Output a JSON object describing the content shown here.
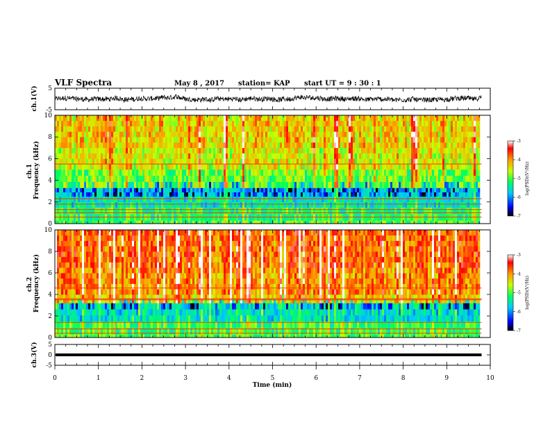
{
  "header": {
    "title": "VLF Spectra",
    "date": "May 8 , 2017",
    "station": "station= KAP",
    "start": "start UT = 9 : 30 : 1"
  },
  "chart_data": [
    {
      "type": "line",
      "name": "ch1-waveform",
      "ylabel": "ch.1(V)",
      "xlim": [
        0,
        10
      ],
      "ylim": [
        -5,
        5
      ],
      "yticks": [
        "5",
        "-5"
      ],
      "baseline": 0,
      "noise_amplitude_v": 1.2,
      "end_x": 9.8
    },
    {
      "type": "heatmap",
      "name": "ch1-spectrogram",
      "ylabel": "ch.1\nFrequency (kHz)",
      "xlim": [
        0,
        10
      ],
      "ylim": [
        0,
        10
      ],
      "yticks": [
        "0",
        "2",
        "4",
        "6",
        "8",
        "10"
      ],
      "end_x": 9.8,
      "colorbar": {
        "label": "log(PSD)(V²/Hz)",
        "range": [
          -7,
          -3
        ],
        "ticks": [
          "-3",
          "-4",
          "-5",
          "-6",
          "-7"
        ]
      },
      "mean_log_psd_by_band": [
        {
          "f": [
            0.0,
            0.3
          ],
          "v": -5.0
        },
        {
          "f": [
            0.3,
            1.5
          ],
          "v": -5.2
        },
        {
          "f": [
            1.5,
            2.5
          ],
          "v": -5.5
        },
        {
          "f": [
            2.5,
            3.3
          ],
          "v": -5.8
        },
        {
          "f": [
            3.3,
            5.0
          ],
          "v": -4.9
        },
        {
          "f": [
            5.0,
            7.0
          ],
          "v": -4.5
        },
        {
          "f": [
            7.0,
            10.0
          ],
          "v": -4.3
        }
      ],
      "horizontal_lines_khz": [
        0.6,
        1.0,
        1.3,
        1.8,
        2.3,
        5.5
      ]
    },
    {
      "type": "heatmap",
      "name": "ch2-spectrogram",
      "ylabel": "ch.2\nFrequency (kHz)",
      "xlim": [
        0,
        10
      ],
      "ylim": [
        0,
        10
      ],
      "yticks": [
        "0",
        "2",
        "4",
        "6",
        "8",
        "10"
      ],
      "end_x": 9.8,
      "colorbar": {
        "label": "log(PSD)(V²/Hz)",
        "range": [
          -7,
          -3
        ],
        "ticks": [
          "-3",
          "-4",
          "-5",
          "-6",
          "-7"
        ]
      },
      "mean_log_psd_by_band": [
        {
          "f": [
            0.0,
            0.3
          ],
          "v": -5.0
        },
        {
          "f": [
            0.3,
            1.5
          ],
          "v": -5.1
        },
        {
          "f": [
            1.5,
            3.2
          ],
          "v": -5.6
        },
        {
          "f": [
            3.2,
            4.0
          ],
          "v": -4.3
        },
        {
          "f": [
            4.0,
            6.5
          ],
          "v": -4.0
        },
        {
          "f": [
            6.5,
            10.0
          ],
          "v": -3.8
        }
      ],
      "horizontal_lines_khz": [
        0.4,
        0.8,
        1.4,
        3.5,
        3.6,
        4.6
      ]
    },
    {
      "type": "line",
      "name": "ch3-waveform",
      "ylabel": "ch.3(V)",
      "xlabel": "Time (min)",
      "xlim": [
        0,
        10
      ],
      "ylim": [
        -5,
        5
      ],
      "yticks": [
        "5",
        "0",
        "-5"
      ],
      "xticks": [
        "0",
        "1",
        "2",
        "3",
        "4",
        "5",
        "6",
        "7",
        "8",
        "9",
        "10"
      ],
      "baseline": 0,
      "noise_amplitude_v": 0.2,
      "end_x": 9.8
    }
  ]
}
